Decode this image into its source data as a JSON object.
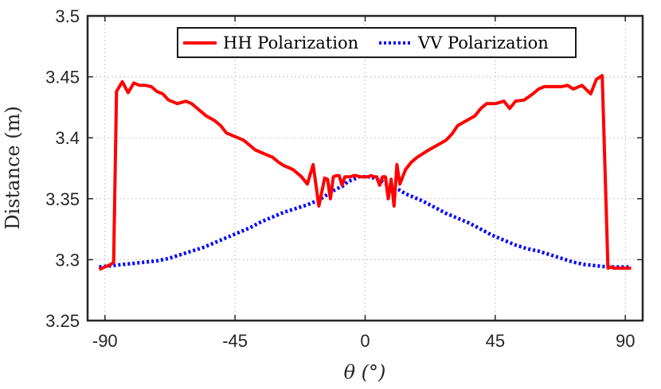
{
  "chart_data": {
    "type": "line",
    "title": "",
    "xlabel": "θ (°)",
    "ylabel": "Distance (m)",
    "xlim": [
      -96,
      96
    ],
    "ylim": [
      3.25,
      3.5
    ],
    "xticks": [
      -90,
      -45,
      0,
      45,
      90
    ],
    "xtick_labels": [
      "-90",
      "-45",
      "0",
      "45",
      "90"
    ],
    "yticks": [
      3.25,
      3.3,
      3.35,
      3.4,
      3.45,
      3.5
    ],
    "ytick_labels": [
      "3.25",
      "3.3",
      "3.35",
      "3.4",
      "3.45",
      "3.5"
    ],
    "grid": true,
    "legend_position": "top-right",
    "series": [
      {
        "name": "HH Polarization",
        "color": "#ff0000",
        "style": "solid",
        "x": [
          -92,
          -90,
          -88,
          -87,
          -86,
          -84,
          -82,
          -80,
          -78,
          -76,
          -74,
          -72,
          -70,
          -68,
          -65,
          -62,
          -60,
          -58,
          -55,
          -52,
          -50,
          -48,
          -45,
          -42,
          -40,
          -38,
          -35,
          -32,
          -30,
          -28,
          -25,
          -22,
          -20,
          -18,
          -16,
          -14,
          -13,
          -12,
          -11,
          -10,
          -9,
          -8,
          -7,
          -6,
          -5,
          -4,
          -3,
          -2,
          -1,
          0,
          1,
          2,
          3,
          4,
          5,
          6,
          7,
          8,
          9,
          10,
          11,
          12,
          13,
          14,
          16,
          18,
          20,
          22,
          25,
          28,
          30,
          32,
          35,
          38,
          40,
          42,
          45,
          48,
          50,
          52,
          55,
          58,
          60,
          62,
          65,
          68,
          70,
          72,
          75,
          78,
          80,
          82,
          84,
          85,
          86,
          87,
          88,
          90,
          92
        ],
        "values": [
          3.292,
          3.294,
          3.296,
          3.298,
          3.438,
          3.446,
          3.437,
          3.445,
          3.443,
          3.443,
          3.442,
          3.438,
          3.436,
          3.431,
          3.428,
          3.43,
          3.428,
          3.424,
          3.418,
          3.414,
          3.41,
          3.404,
          3.401,
          3.398,
          3.394,
          3.39,
          3.387,
          3.384,
          3.38,
          3.377,
          3.374,
          3.368,
          3.362,
          3.378,
          3.344,
          3.367,
          3.366,
          3.35,
          3.368,
          3.369,
          3.369,
          3.361,
          3.368,
          3.368,
          3.368,
          3.369,
          3.369,
          3.368,
          3.368,
          3.368,
          3.368,
          3.369,
          3.368,
          3.368,
          3.361,
          3.368,
          3.368,
          3.35,
          3.366,
          3.344,
          3.378,
          3.362,
          3.368,
          3.374,
          3.38,
          3.384,
          3.387,
          3.39,
          3.394,
          3.398,
          3.403,
          3.41,
          3.414,
          3.418,
          3.424,
          3.428,
          3.428,
          3.43,
          3.424,
          3.43,
          3.431,
          3.436,
          3.44,
          3.442,
          3.442,
          3.442,
          3.443,
          3.44,
          3.443,
          3.436,
          3.448,
          3.451,
          3.293,
          3.294,
          3.293,
          3.293,
          3.293,
          3.293,
          3.293
        ]
      },
      {
        "name": "VV Polarization",
        "color": "#0000ff",
        "style": "dotted",
        "x": [
          -92,
          -88,
          -84,
          -80,
          -76,
          -72,
          -68,
          -64,
          -60,
          -56,
          -52,
          -48,
          -44,
          -40,
          -36,
          -32,
          -28,
          -24,
          -20,
          -16,
          -14,
          -12,
          -10,
          -8,
          -6,
          -4,
          -2,
          0,
          2,
          4,
          6,
          8,
          10,
          12,
          14,
          16,
          20,
          24,
          28,
          32,
          36,
          40,
          44,
          48,
          52,
          56,
          60,
          64,
          68,
          72,
          76,
          80,
          84,
          88,
          92
        ],
        "values": [
          3.294,
          3.295,
          3.296,
          3.297,
          3.298,
          3.299,
          3.301,
          3.304,
          3.307,
          3.31,
          3.314,
          3.318,
          3.322,
          3.326,
          3.331,
          3.335,
          3.339,
          3.342,
          3.345,
          3.349,
          3.352,
          3.355,
          3.358,
          3.36,
          3.364,
          3.366,
          3.368,
          3.368,
          3.368,
          3.366,
          3.364,
          3.361,
          3.359,
          3.357,
          3.354,
          3.352,
          3.348,
          3.343,
          3.338,
          3.334,
          3.33,
          3.325,
          3.32,
          3.316,
          3.312,
          3.309,
          3.307,
          3.304,
          3.301,
          3.298,
          3.296,
          3.295,
          3.294,
          3.294,
          3.294
        ]
      }
    ]
  }
}
